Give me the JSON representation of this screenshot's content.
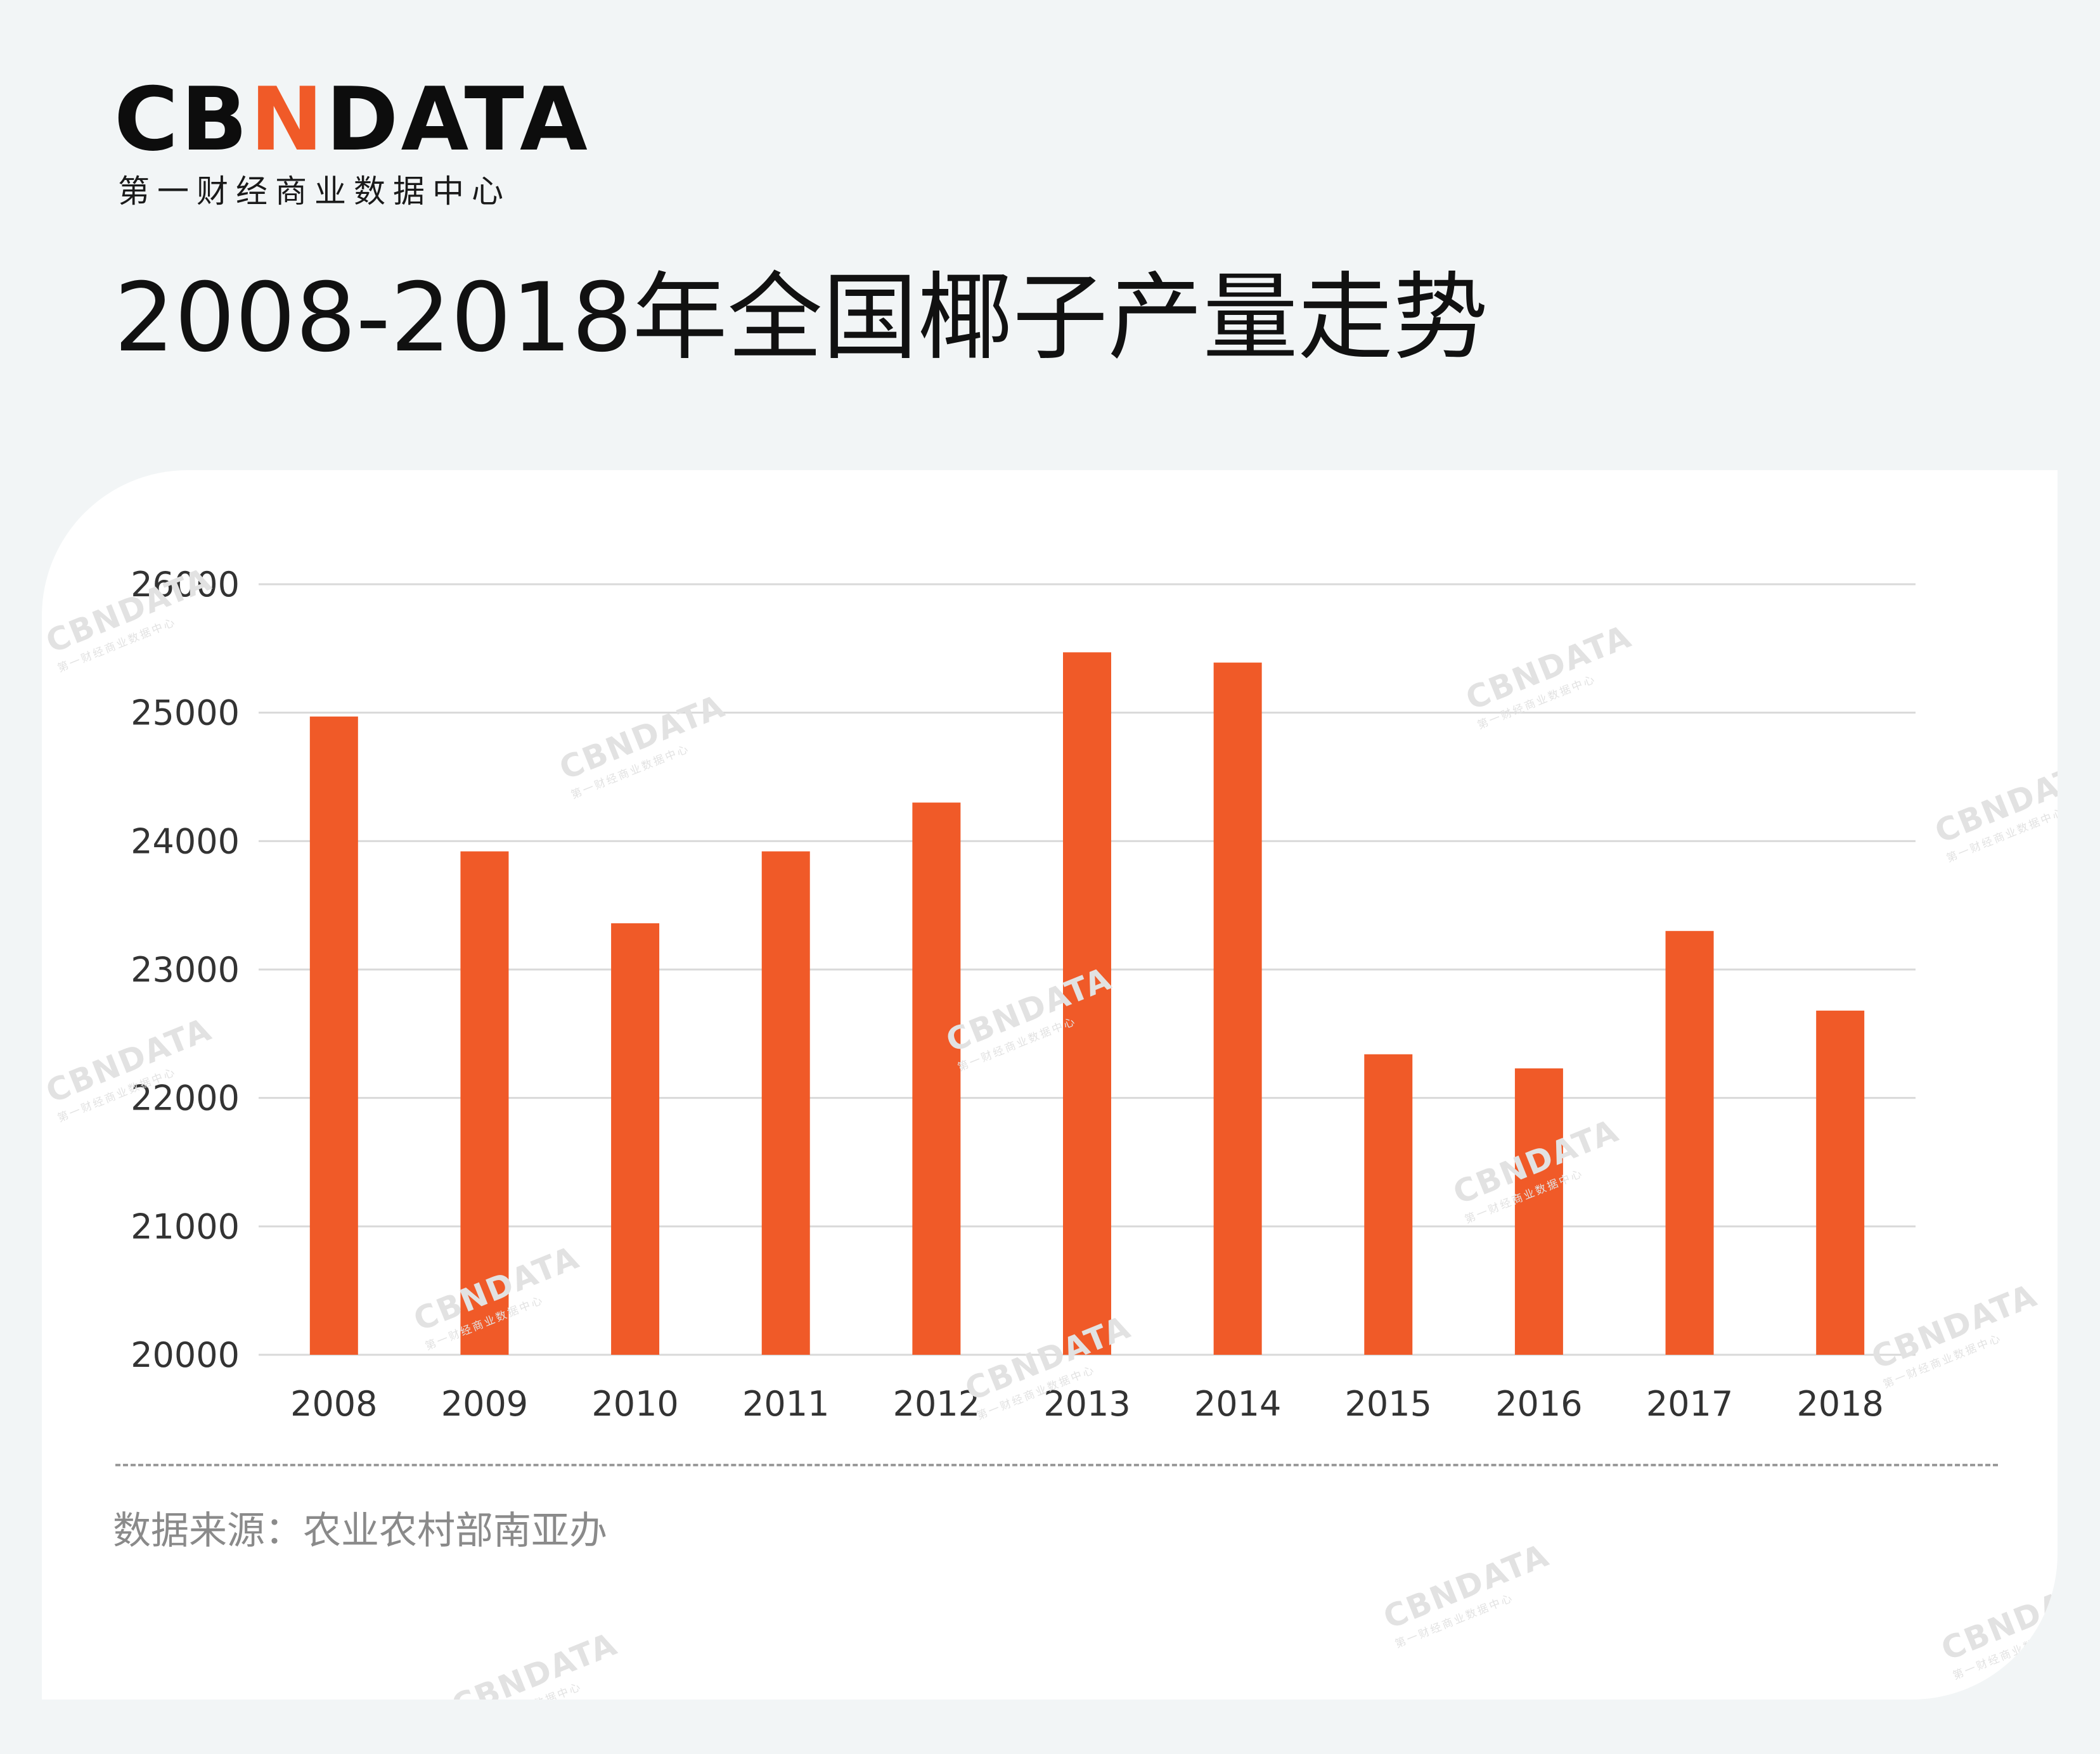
{
  "brand": {
    "logo_prefix": "CB",
    "logo_accent": "N",
    "logo_suffix": "DATA",
    "subtitle": "第一财经商业数据中心"
  },
  "page_title": "2008-2018年全国椰子产量走势",
  "source": "数据来源：农业农村部南亚办",
  "colors": {
    "bar": "#f05a28",
    "accent": "#f05a28",
    "grid": "#d9d9d9",
    "background": "#f2f5f6",
    "card": "#ffffff"
  },
  "watermark": {
    "main": "CBNDATA",
    "sub": "第一财经商业数据中心"
  },
  "chart_data": {
    "type": "bar",
    "title": "2008-2018年全国椰子产量走势",
    "xlabel": "",
    "ylabel": "",
    "categories": [
      "2008",
      "2009",
      "2010",
      "2011",
      "2012",
      "2013",
      "2014",
      "2015",
      "2016",
      "2017",
      "2018"
    ],
    "values": [
      24970,
      23920,
      23360,
      23920,
      24300,
      25470,
      25390,
      22340,
      22230,
      23300,
      22680
    ],
    "ylim": [
      20000,
      26000
    ],
    "yticks": [
      "20000",
      "21000",
      "22000",
      "23000",
      "24000",
      "25000",
      "26000"
    ],
    "grid": true,
    "legend": "none"
  }
}
